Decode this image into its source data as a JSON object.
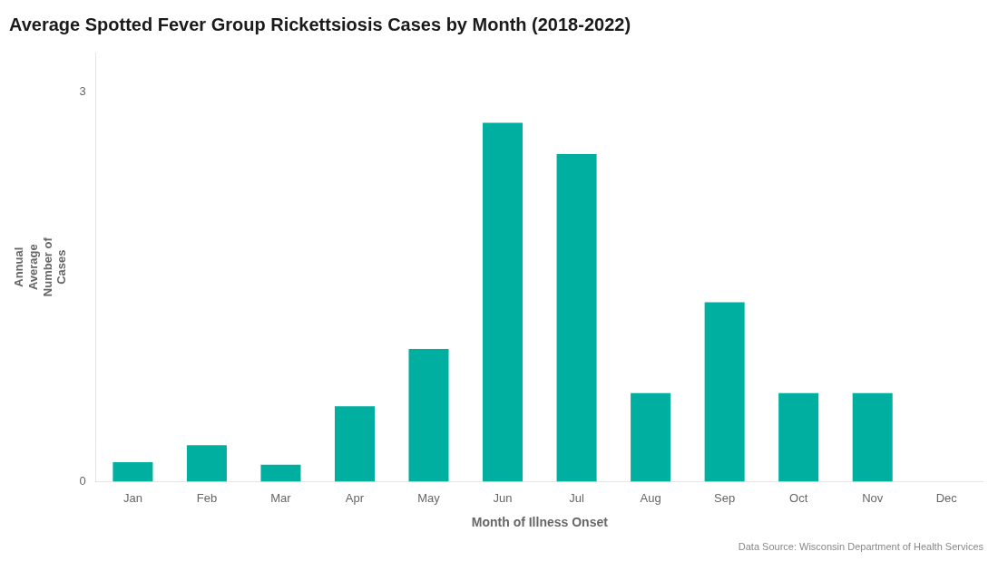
{
  "chart_data": {
    "type": "bar",
    "title": "Average Spotted Fever Group Rickettsiosis Cases by Month (2018-2022)",
    "xlabel": "Month of Illness Onset",
    "ylabel": "Annual\nAverage\nNumber of\nCases",
    "annotations": [
      "Data Source: Wisconsin Department of Health Services"
    ],
    "categories": [
      "Jan",
      "Feb",
      "Mar",
      "Apr",
      "May",
      "Jun",
      "Jul",
      "Aug",
      "Sep",
      "Oct",
      "Nov",
      "Dec"
    ],
    "values": [
      0.15,
      0.28,
      0.13,
      0.58,
      1.02,
      2.76,
      2.52,
      0.68,
      1.38,
      0.68,
      0.68,
      0.0
    ],
    "color": "#00AFA0",
    "ylim": [
      0,
      3.3
    ],
    "yticks": [
      0,
      3
    ],
    "grid": false
  }
}
